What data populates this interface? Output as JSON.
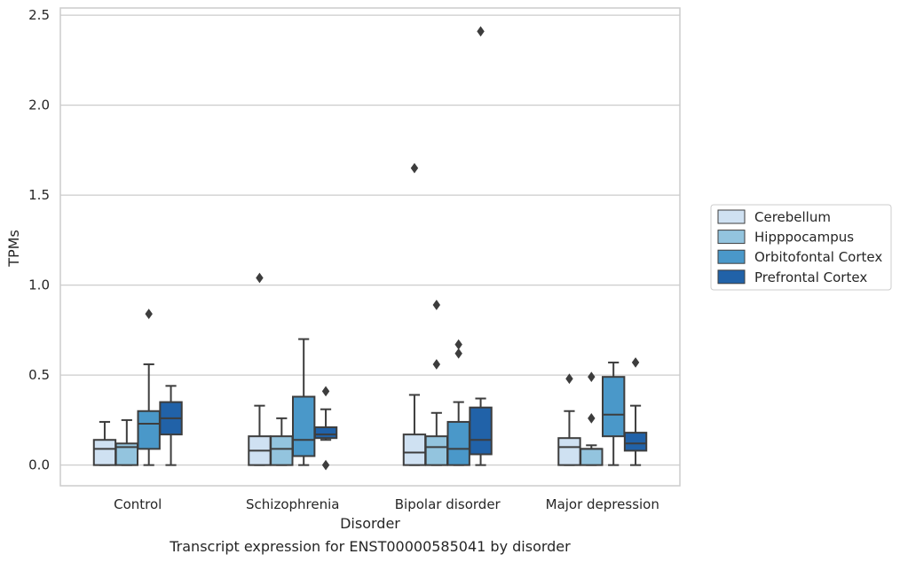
{
  "chart_data": {
    "type": "box",
    "caption": "Transcript expression for ENST00000585041 by disorder",
    "xlabel": "Disorder",
    "ylabel": "TPMs",
    "ylim": [
      -0.115,
      2.54
    ],
    "yticks": [
      "0.0",
      "0.5",
      "1.0",
      "1.5",
      "2.0",
      "2.5"
    ],
    "ytick_values": [
      0,
      0.5,
      1.0,
      1.5,
      2.0,
      2.5
    ],
    "grid": "horizontal",
    "legend_position": "right",
    "categories": [
      "Control",
      "Schizophrenia",
      "Bipolar disorder",
      "Major depression"
    ],
    "series": [
      {
        "name": "Cerebellum",
        "color": "#cfe1f2",
        "boxes": [
          {
            "whisker_low": 0.0,
            "q1": 0.0,
            "median": 0.09,
            "q3": 0.14,
            "whisker_high": 0.24,
            "outliers": []
          },
          {
            "whisker_low": 0.0,
            "q1": 0.0,
            "median": 0.08,
            "q3": 0.16,
            "whisker_high": 0.33,
            "outliers": [
              1.04
            ]
          },
          {
            "whisker_low": 0.0,
            "q1": 0.0,
            "median": 0.07,
            "q3": 0.17,
            "whisker_high": 0.39,
            "outliers": [
              1.65
            ]
          },
          {
            "whisker_low": 0.0,
            "q1": 0.0,
            "median": 0.1,
            "q3": 0.15,
            "whisker_high": 0.3,
            "outliers": [
              0.48
            ]
          }
        ]
      },
      {
        "name": "Hipppocampus",
        "color": "#93c4de",
        "boxes": [
          {
            "whisker_low": 0.0,
            "q1": 0.0,
            "median": 0.1,
            "q3": 0.12,
            "whisker_high": 0.25,
            "outliers": []
          },
          {
            "whisker_low": 0.0,
            "q1": 0.0,
            "median": 0.09,
            "q3": 0.16,
            "whisker_high": 0.26,
            "outliers": []
          },
          {
            "whisker_low": 0.0,
            "q1": 0.0,
            "median": 0.1,
            "q3": 0.16,
            "whisker_high": 0.29,
            "outliers": [
              0.89,
              0.56
            ]
          },
          {
            "whisker_low": 0.0,
            "q1": 0.0,
            "median": 0.09,
            "q3": 0.09,
            "whisker_high": 0.11,
            "outliers": [
              0.49,
              0.26
            ]
          }
        ]
      },
      {
        "name": "Orbitofontal Cortex",
        "color": "#4a98c9",
        "boxes": [
          {
            "whisker_low": 0.0,
            "q1": 0.09,
            "median": 0.23,
            "q3": 0.3,
            "whisker_high": 0.56,
            "outliers": [
              0.84
            ]
          },
          {
            "whisker_low": 0.0,
            "q1": 0.05,
            "median": 0.14,
            "q3": 0.38,
            "whisker_high": 0.7,
            "outliers": []
          },
          {
            "whisker_low": 0.0,
            "q1": 0.0,
            "median": 0.09,
            "q3": 0.24,
            "whisker_high": 0.35,
            "outliers": [
              0.67,
              0.62
            ]
          },
          {
            "whisker_low": 0.0,
            "q1": 0.16,
            "median": 0.28,
            "q3": 0.49,
            "whisker_high": 0.57,
            "outliers": []
          }
        ]
      },
      {
        "name": "Prefrontal Cortex",
        "color": "#2162a8",
        "boxes": [
          {
            "whisker_low": 0.0,
            "q1": 0.17,
            "median": 0.26,
            "q3": 0.35,
            "whisker_high": 0.44,
            "outliers": []
          },
          {
            "whisker_low": 0.14,
            "q1": 0.15,
            "median": 0.17,
            "q3": 0.21,
            "whisker_high": 0.31,
            "outliers": [
              0.41,
              0.0
            ]
          },
          {
            "whisker_low": 0.0,
            "q1": 0.06,
            "median": 0.14,
            "q3": 0.32,
            "whisker_high": 0.37,
            "outliers": [
              2.41
            ]
          },
          {
            "whisker_low": 0.0,
            "q1": 0.08,
            "median": 0.12,
            "q3": 0.18,
            "whisker_high": 0.33,
            "outliers": [
              0.57
            ]
          }
        ]
      }
    ]
  }
}
